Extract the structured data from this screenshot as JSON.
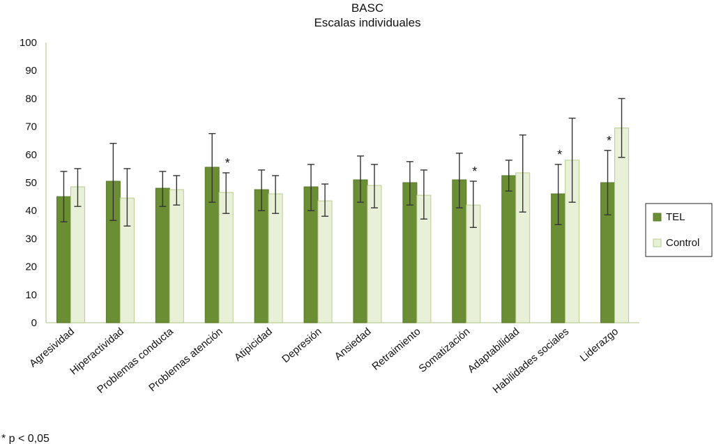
{
  "chart_data": {
    "type": "bar",
    "title": "BASC",
    "subtitle": "Escalas individuales",
    "ylim": [
      0,
      100
    ],
    "yticks": [
      0,
      10,
      20,
      30,
      40,
      50,
      60,
      70,
      80,
      90,
      100
    ],
    "categories": [
      "Agresividad",
      "Hiperactividad",
      "Problemas conducta",
      "Problemas atención",
      "Atipicidad",
      "Depresión",
      "Ansiedad",
      "Retraimiento",
      "Somatización",
      "Adaptabilidad",
      "Habilidades sociales",
      "Liderazgo"
    ],
    "series": [
      {
        "name": "TEL",
        "color": "#6b8e35",
        "values": [
          45,
          50.5,
          48,
          55.5,
          47.5,
          48.5,
          51,
          50,
          51,
          52.5,
          46,
          50
        ],
        "err_low": [
          36,
          36.5,
          41.5,
          43,
          40,
          40,
          43,
          42,
          41,
          47,
          35,
          38.5
        ],
        "err_high": [
          54,
          64,
          54,
          67.5,
          54.5,
          56.5,
          59.5,
          57.5,
          60.5,
          58,
          56.5,
          61.5
        ]
      },
      {
        "name": "Control",
        "color": "#e8f0d8",
        "values": [
          48.5,
          44.5,
          47.5,
          46.5,
          46,
          43.5,
          49,
          45.5,
          42,
          53.5,
          58,
          69.5
        ],
        "err_low": [
          41.5,
          34.5,
          42,
          39,
          39,
          38,
          41,
          37,
          34,
          39.5,
          43,
          59
        ],
        "err_high": [
          55,
          55,
          52.5,
          53.5,
          52.5,
          49.5,
          56.5,
          54.5,
          50.5,
          67,
          73,
          80
        ]
      }
    ],
    "significance": [
      {
        "category": "Problemas atención",
        "series": "Control",
        "marker": "*"
      },
      {
        "category": "Somatización",
        "series": "Control",
        "marker": "*"
      },
      {
        "category": "Habilidades sociales",
        "series": "TEL",
        "marker": "*"
      },
      {
        "category": "Liderazgo",
        "series": "TEL",
        "marker": "*"
      }
    ],
    "legend_position": "right",
    "grid": false
  },
  "footnote": "* p < 0,05"
}
